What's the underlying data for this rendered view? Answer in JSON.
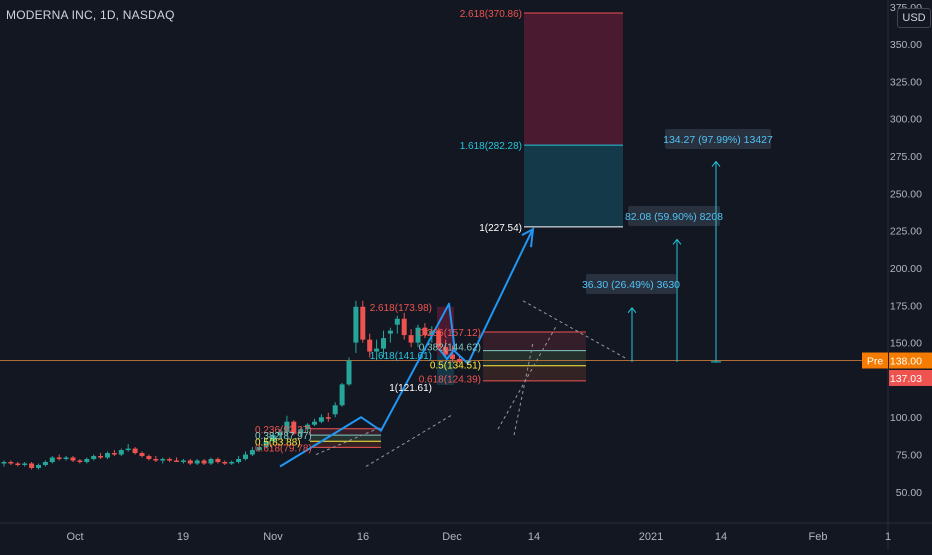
{
  "header": {
    "title": "MODERNA INC, 1D, NASDAQ",
    "currency": "USD"
  },
  "price_tags": {
    "pre_label": "Pre",
    "pre_value": "138.00",
    "last_value": "137.03"
  },
  "fib_upper": [
    {
      "label": "2.618(370.86)",
      "level": 370.86,
      "color": "#ef5350"
    },
    {
      "label": "1.618(282.28)",
      "level": 282.28,
      "color": "#26c6da"
    },
    {
      "label": "1(227.54)",
      "level": 227.54,
      "color": "#ffffff"
    }
  ],
  "fib_mid": [
    {
      "label": "2.618(173.98)",
      "level": 173.98,
      "color": "#ef5350"
    },
    {
      "label": "0.236(157.12)",
      "level": 157.12,
      "color": "#ef5350"
    },
    {
      "label": "1.618(141.61)",
      "level": 141.61,
      "color": "#26c6da"
    },
    {
      "label": "0.382(144.62)",
      "level": 144.62,
      "color": "#80cbc4"
    },
    {
      "label": "0.5(134.51)",
      "level": 134.51,
      "color": "#ffeb3b"
    },
    {
      "label": "0.618(124.39)",
      "level": 124.39,
      "color": "#ef5350"
    },
    {
      "label": "1(121.61)",
      "level": 121.61,
      "color": "#ffffff"
    }
  ],
  "fib_low": [
    {
      "label": "0.236(92.27)",
      "level": 92.27,
      "color": "#ef5350"
    },
    {
      "label": "0.382(87.97)",
      "level": 87.97,
      "color": "#80cbc4"
    },
    {
      "label": "0.5(83.88)",
      "level": 83.88,
      "color": "#ffeb3b"
    },
    {
      "label": "0.618(79.78)",
      "level": 79.78,
      "color": "#ef5350"
    }
  ],
  "measures": [
    {
      "label": "36.30 (26.49%) 3630",
      "from": 137.03,
      "to": 173.33
    },
    {
      "label": "82.08 (59.90%) 8208",
      "from": 137.03,
      "to": 219.11
    },
    {
      "label": "134.27 (97.99%) 13427",
      "from": 137.03,
      "to": 271.3
    }
  ],
  "chart_data": {
    "type": "candlestick",
    "symbol": "MODERNA INC",
    "interval": "1D",
    "exchange": "NASDAQ",
    "y_ticks": [
      50,
      75,
      100,
      125,
      150,
      175,
      200,
      225,
      250,
      275,
      300,
      325,
      350,
      375
    ],
    "y_tick_labels": [
      "50.00",
      "75.00",
      "100.00",
      "125.00",
      "150.00",
      "175.00",
      "200.00",
      "225.00",
      "250.00",
      "275.00",
      "300.00",
      "325.00",
      "350.00",
      "375.00"
    ],
    "ylim": [
      30,
      380
    ],
    "x_ticks": [
      "Oct",
      "19",
      "Nov",
      "16",
      "Dec",
      "14",
      "2021",
      "14",
      "Feb",
      "1"
    ],
    "grid": false,
    "candles": [
      {
        "o": 69,
        "h": 71,
        "l": 67,
        "c": 70
      },
      {
        "o": 70,
        "h": 71,
        "l": 68,
        "c": 69
      },
      {
        "o": 69,
        "h": 70,
        "l": 67,
        "c": 68
      },
      {
        "o": 68,
        "h": 70,
        "l": 67,
        "c": 69
      },
      {
        "o": 69,
        "h": 70,
        "l": 65,
        "c": 66
      },
      {
        "o": 66,
        "h": 69,
        "l": 65,
        "c": 68
      },
      {
        "o": 68,
        "h": 71,
        "l": 67,
        "c": 70
      },
      {
        "o": 70,
        "h": 74,
        "l": 69,
        "c": 73
      },
      {
        "o": 73,
        "h": 75,
        "l": 71,
        "c": 72
      },
      {
        "o": 72,
        "h": 74,
        "l": 71,
        "c": 73
      },
      {
        "o": 73,
        "h": 74,
        "l": 70,
        "c": 71
      },
      {
        "o": 71,
        "h": 72,
        "l": 69,
        "c": 70
      },
      {
        "o": 70,
        "h": 73,
        "l": 69,
        "c": 72
      },
      {
        "o": 72,
        "h": 75,
        "l": 71,
        "c": 74
      },
      {
        "o": 74,
        "h": 76,
        "l": 72,
        "c": 73
      },
      {
        "o": 73,
        "h": 77,
        "l": 72,
        "c": 76
      },
      {
        "o": 76,
        "h": 78,
        "l": 74,
        "c": 75
      },
      {
        "o": 75,
        "h": 79,
        "l": 74,
        "c": 78
      },
      {
        "o": 78,
        "h": 82,
        "l": 77,
        "c": 79
      },
      {
        "o": 79,
        "h": 80,
        "l": 75,
        "c": 76
      },
      {
        "o": 76,
        "h": 77,
        "l": 73,
        "c": 74
      },
      {
        "o": 74,
        "h": 75,
        "l": 71,
        "c": 72
      },
      {
        "o": 72,
        "h": 74,
        "l": 70,
        "c": 71
      },
      {
        "o": 71,
        "h": 73,
        "l": 69,
        "c": 72
      },
      {
        "o": 72,
        "h": 73,
        "l": 70,
        "c": 71
      },
      {
        "o": 71,
        "h": 73,
        "l": 70,
        "c": 70
      },
      {
        "o": 70,
        "h": 72,
        "l": 69,
        "c": 71
      },
      {
        "o": 71,
        "h": 72,
        "l": 68,
        "c": 69
      },
      {
        "o": 69,
        "h": 72,
        "l": 68,
        "c": 71
      },
      {
        "o": 71,
        "h": 72,
        "l": 68,
        "c": 69
      },
      {
        "o": 69,
        "h": 73,
        "l": 68,
        "c": 72
      },
      {
        "o": 72,
        "h": 73,
        "l": 69,
        "c": 70
      },
      {
        "o": 70,
        "h": 71,
        "l": 68,
        "c": 69
      },
      {
        "o": 69,
        "h": 71,
        "l": 68,
        "c": 70
      },
      {
        "o": 70,
        "h": 74,
        "l": 69,
        "c": 72
      },
      {
        "o": 72,
        "h": 77,
        "l": 71,
        "c": 75
      },
      {
        "o": 75,
        "h": 80,
        "l": 74,
        "c": 78
      },
      {
        "o": 78,
        "h": 82,
        "l": 77,
        "c": 80
      },
      {
        "o": 80,
        "h": 86,
        "l": 79,
        "c": 84
      },
      {
        "o": 84,
        "h": 90,
        "l": 83,
        "c": 88
      },
      {
        "o": 88,
        "h": 92,
        "l": 86,
        "c": 90
      },
      {
        "o": 90,
        "h": 101,
        "l": 87,
        "c": 97
      },
      {
        "o": 97,
        "h": 98,
        "l": 88,
        "c": 89
      },
      {
        "o": 89,
        "h": 93,
        "l": 87,
        "c": 92
      },
      {
        "o": 92,
        "h": 96,
        "l": 90,
        "c": 95
      },
      {
        "o": 95,
        "h": 99,
        "l": 94,
        "c": 97
      },
      {
        "o": 97,
        "h": 102,
        "l": 96,
        "c": 100
      },
      {
        "o": 100,
        "h": 103,
        "l": 97,
        "c": 99
      },
      {
        "o": 102,
        "h": 110,
        "l": 100,
        "c": 108
      },
      {
        "o": 108,
        "h": 123,
        "l": 107,
        "c": 122
      },
      {
        "o": 122,
        "h": 140,
        "l": 121,
        "c": 138
      },
      {
        "o": 150,
        "h": 178,
        "l": 143,
        "c": 174
      },
      {
        "o": 174,
        "h": 178,
        "l": 150,
        "c": 152
      },
      {
        "o": 152,
        "h": 156,
        "l": 140,
        "c": 144
      },
      {
        "o": 144,
        "h": 152,
        "l": 138,
        "c": 146
      },
      {
        "o": 146,
        "h": 158,
        "l": 140,
        "c": 153
      },
      {
        "o": 156,
        "h": 160,
        "l": 150,
        "c": 158
      },
      {
        "o": 162,
        "h": 168,
        "l": 156,
        "c": 166
      },
      {
        "o": 166,
        "h": 170,
        "l": 152,
        "c": 155
      },
      {
        "o": 155,
        "h": 159,
        "l": 147,
        "c": 150
      },
      {
        "o": 150,
        "h": 162,
        "l": 147,
        "c": 160
      },
      {
        "o": 160,
        "h": 163,
        "l": 153,
        "c": 155
      },
      {
        "o": 155,
        "h": 161,
        "l": 150,
        "c": 158
      },
      {
        "o": 158,
        "h": 160,
        "l": 145,
        "c": 147
      },
      {
        "o": 147,
        "h": 152,
        "l": 140,
        "c": 142
      },
      {
        "o": 142,
        "h": 148,
        "l": 137,
        "c": 139
      },
      {
        "o": 139,
        "h": 141,
        "l": 136,
        "c": 137
      }
    ]
  }
}
